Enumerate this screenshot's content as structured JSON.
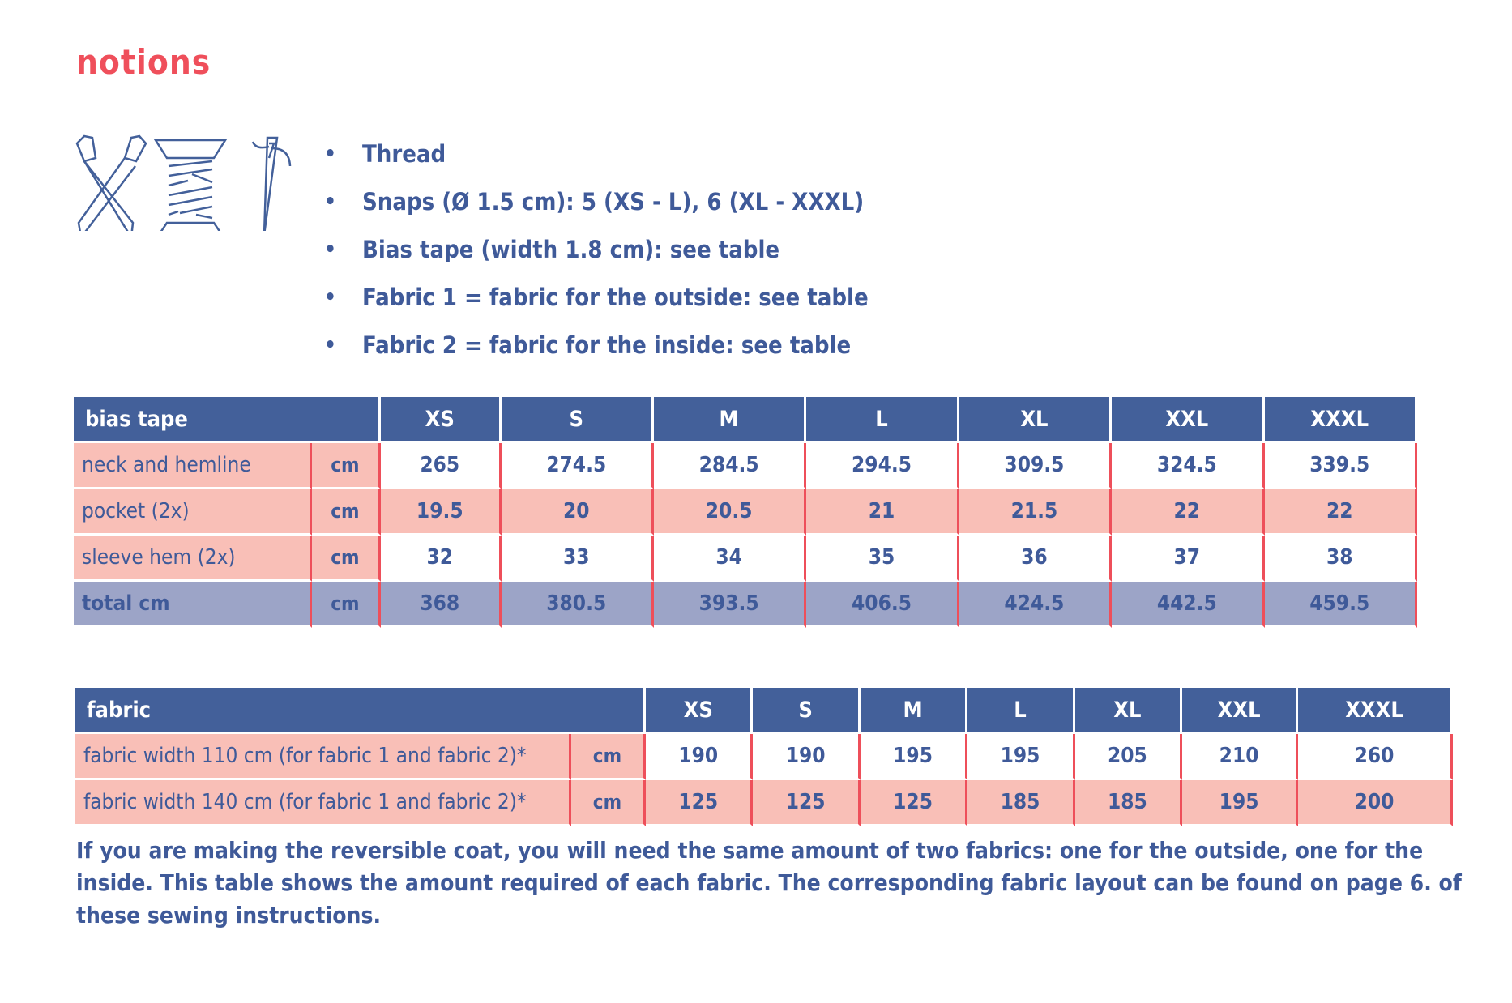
{
  "title": "notions",
  "icons": [
    "scissors-icon",
    "thread-spool-icon",
    "needle-icon"
  ],
  "bullets": [
    "Thread",
    "Snaps (Ø 1.5 cm): 5 (XS - L), 6 (XL - XXXL)",
    "Bias tape (width 1.8 cm): see table",
    "Fabric 1 = fabric for the outside: see table",
    "Fabric 2 = fabric for the inside: see table"
  ],
  "bias_table": {
    "header": "bias tape",
    "sizes": [
      "XS",
      "S",
      "M",
      "L",
      "XL",
      "XXL",
      "XXXL"
    ],
    "rows": [
      {
        "label": "neck and hemline",
        "unit": "cm",
        "values": [
          "265",
          "274.5",
          "284.5",
          "294.5",
          "309.5",
          "324.5",
          "339.5"
        ]
      },
      {
        "label": "pocket (2x)",
        "unit": "cm",
        "values": [
          "19.5",
          "20",
          "20.5",
          "21",
          "21.5",
          "22",
          "22"
        ]
      },
      {
        "label": "sleeve hem (2x)",
        "unit": "cm",
        "values": [
          "32",
          "33",
          "34",
          "35",
          "36",
          "37",
          "38"
        ]
      },
      {
        "label": "total cm",
        "unit": "cm",
        "values": [
          "368",
          "380.5",
          "393.5",
          "406.5",
          "424.5",
          "442.5",
          "459.5"
        ]
      }
    ]
  },
  "fabric_table": {
    "header": "fabric",
    "sizes": [
      "XS",
      "S",
      "M",
      "L",
      "XL",
      "XXL",
      "XXXL"
    ],
    "rows": [
      {
        "label": "fabric width 110 cm (for fabric 1 and fabric 2)*",
        "unit": "cm",
        "values": [
          "190",
          "190",
          "195",
          "195",
          "205",
          "210",
          "260"
        ]
      },
      {
        "label": "fabric width 140 cm (for fabric 1 and fabric 2)*",
        "unit": "cm",
        "values": [
          "125",
          "125",
          "125",
          "185",
          "185",
          "195",
          "200"
        ]
      }
    ]
  },
  "note": "If you are making the reversible coat, you will need the same amount of two fabrics: one for the outside, one for the inside. This table shows the amount required of each fabric. The corresponding fabric layout can be found on page 6. of these sewing instructions.",
  "colors": {
    "accent": "#ef4f5b",
    "header": "#43609a",
    "pink": "#f9bfb7",
    "total": "#9ca4c7",
    "text": "#3f5a99"
  }
}
